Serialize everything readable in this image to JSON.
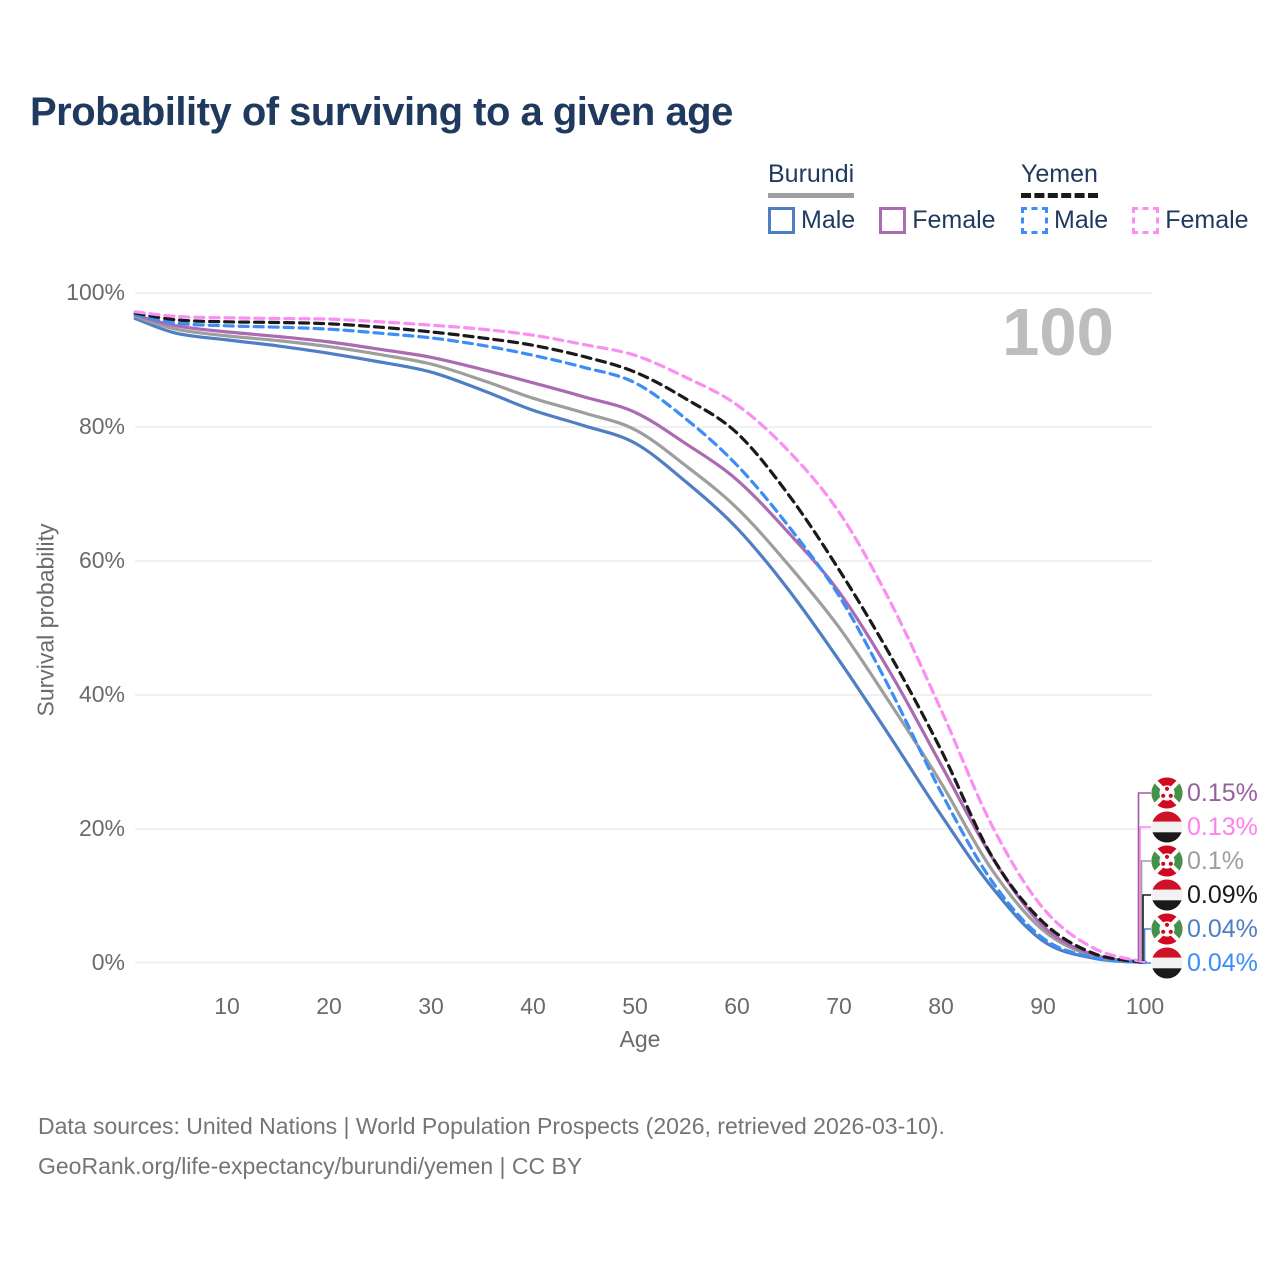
{
  "title": "Probability of surviving to a given age",
  "watermark": "100",
  "legend": {
    "groups": [
      {
        "country": "Burundi",
        "underline_style": "solid",
        "underline_color": "#9e9e9e",
        "items": [
          {
            "label": "Male",
            "color": "#4e7ec3",
            "style": "solid"
          },
          {
            "label": "Female",
            "color": "#ab6bb3",
            "style": "solid"
          }
        ]
      },
      {
        "country": "Yemen",
        "underline_style": "dashed",
        "underline_color": "#1a1a1a",
        "items": [
          {
            "label": "Male",
            "color": "#3c8df5",
            "style": "dashed"
          },
          {
            "label": "Female",
            "color": "#fb8ef2",
            "style": "dashed"
          }
        ]
      }
    ]
  },
  "chart_data": {
    "type": "line",
    "title": "Probability of surviving to a given age",
    "xlabel": "Age",
    "ylabel": "Survival probability",
    "xlim": [
      0,
      100
    ],
    "ylim": [
      0,
      100
    ],
    "grid": "horizontal",
    "x_ticks": [
      {
        "value": 10,
        "label": "10"
      },
      {
        "value": 20,
        "label": "20"
      },
      {
        "value": 30,
        "label": "30"
      },
      {
        "value": 40,
        "label": "40"
      },
      {
        "value": 50,
        "label": "50"
      },
      {
        "value": 60,
        "label": "60"
      },
      {
        "value": 70,
        "label": "70"
      },
      {
        "value": 80,
        "label": "80"
      },
      {
        "value": 90,
        "label": "90"
      },
      {
        "value": 100,
        "label": "100"
      }
    ],
    "y_ticks": [
      {
        "value": 0,
        "label": "0%"
      },
      {
        "value": 20,
        "label": "20%"
      },
      {
        "value": 40,
        "label": "40%"
      },
      {
        "value": 60,
        "label": "60%"
      },
      {
        "value": 80,
        "label": "80%"
      },
      {
        "value": 100,
        "label": "100%"
      }
    ],
    "x": [
      1,
      5,
      10,
      15,
      20,
      25,
      30,
      35,
      40,
      45,
      50,
      55,
      60,
      65,
      70,
      75,
      80,
      85,
      90,
      95,
      100
    ],
    "series": [
      {
        "name": "Burundi Male",
        "country": "Burundi",
        "group": "Male",
        "style": "solid",
        "color": "#4e7ec3",
        "end_label": "0.04%",
        "values": [
          96.2,
          94.0,
          93.0,
          92.1,
          91.0,
          89.7,
          88.2,
          85.5,
          82.5,
          80.2,
          77.6,
          71.8,
          64.9,
          55.8,
          45.2,
          33.8,
          22.1,
          11.3,
          3.3,
          0.7,
          0.04
        ]
      },
      {
        "name": "Burundi (both sexes)",
        "country": "Burundi",
        "group": "Both",
        "style": "solid",
        "color": "#9e9e9e",
        "end_label": "0.1%",
        "values": [
          96.5,
          94.6,
          93.6,
          92.9,
          92.0,
          90.8,
          89.4,
          87.0,
          84.3,
          82.1,
          79.6,
          74.2,
          67.9,
          59.5,
          50.1,
          38.8,
          26.9,
          13.9,
          4.9,
          1.0,
          0.1
        ]
      },
      {
        "name": "Burundi Female",
        "country": "Burundi",
        "group": "Female",
        "style": "solid",
        "color": "#ab6bb3",
        "end_label": "0.15%",
        "values": [
          96.7,
          95.1,
          94.2,
          93.5,
          92.7,
          91.6,
          90.4,
          88.6,
          86.6,
          84.5,
          82.2,
          77.5,
          72.1,
          64.3,
          55.4,
          43.4,
          29.6,
          15.8,
          5.5,
          1.2,
          0.15
        ]
      },
      {
        "name": "Yemen Male",
        "country": "Yemen",
        "group": "Male",
        "style": "dashed",
        "color": "#3c8df5",
        "end_label": "0.04%",
        "values": [
          96.8,
          95.5,
          95.1,
          94.9,
          94.6,
          94.0,
          93.3,
          92.2,
          90.7,
          88.9,
          86.6,
          81.2,
          74.3,
          65.3,
          54.8,
          40.9,
          25.5,
          12.2,
          3.7,
          0.8,
          0.04
        ]
      },
      {
        "name": "Yemen (both sexes)",
        "country": "Yemen",
        "group": "Both",
        "style": "dashed",
        "color": "#1a1a1a",
        "end_label": "0.09%",
        "values": [
          97.0,
          96.0,
          95.7,
          95.6,
          95.4,
          94.9,
          94.2,
          93.3,
          92.2,
          90.5,
          88.2,
          84.2,
          79.1,
          70.0,
          58.7,
          46.0,
          31.8,
          15.9,
          6.1,
          1.4,
          0.09
        ]
      },
      {
        "name": "Yemen Female",
        "country": "Yemen",
        "group": "Female",
        "style": "dashed",
        "color": "#fb8ef2",
        "end_label": "0.13%",
        "values": [
          97.2,
          96.5,
          96.3,
          96.2,
          96.1,
          95.7,
          95.2,
          94.6,
          93.7,
          92.3,
          90.7,
          87.4,
          83.3,
          76.5,
          67.3,
          54.0,
          37.8,
          20.5,
          8.2,
          2.2,
          0.13
        ]
      }
    ]
  },
  "end_labels": [
    {
      "icon": "burundi-flag-icon",
      "flag": "burundi",
      "label": "0.15%",
      "color": "#9a5fa3",
      "series": "Burundi Female"
    },
    {
      "icon": "yemen-flag-icon",
      "flag": "yemen",
      "label": "0.13%",
      "color": "#ff80f0",
      "series": "Yemen Female"
    },
    {
      "icon": "burundi-flag-icon",
      "flag": "burundi",
      "label": "0.1%",
      "color": "#9e9e9e",
      "series": "Burundi (both sexes)"
    },
    {
      "icon": "yemen-flag-icon",
      "flag": "yemen",
      "label": "0.09%",
      "color": "#1a1a1a",
      "series": "Yemen (both sexes)"
    },
    {
      "icon": "burundi-flag-icon",
      "flag": "burundi",
      "label": "0.04%",
      "color": "#4e7ec3",
      "series": "Burundi Male"
    },
    {
      "icon": "yemen-flag-icon",
      "flag": "yemen",
      "label": "0.04%",
      "color": "#3c8df5",
      "series": "Yemen Male"
    }
  ],
  "footer": {
    "line1": "Data sources: United Nations | World Population Prospects (2026, retrieved 2026-03-10).",
    "line2": "GeoRank.org/life-expectancy/burundi/yemen | CC BY"
  },
  "colors": {
    "title": "#1f3a5e",
    "axis_text": "#6b6b6b",
    "grid": "#ececec",
    "watermark": "#bdbdbd",
    "footer": "#757575"
  }
}
